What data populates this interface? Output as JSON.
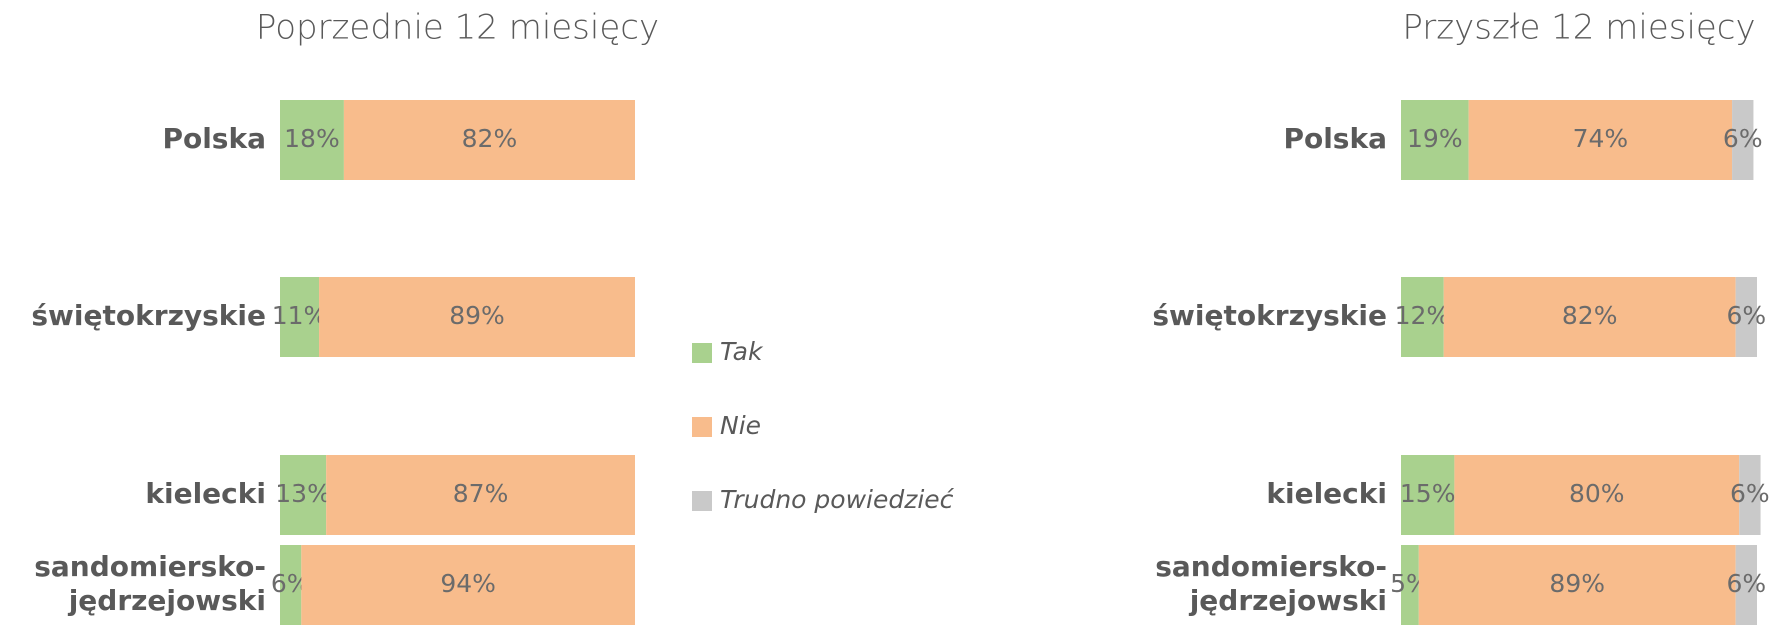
{
  "chart_data": [
    {
      "type": "stacked_barh",
      "title": "Poprzednie 12 miesięcy",
      "categories": [
        "Polska",
        "świętokrzyskie",
        "kielecki",
        "sandomiersko-\njędrzejowski"
      ],
      "xlim": [
        0,
        100
      ],
      "series": [
        {
          "name": "Tak",
          "color": "#a9d18e",
          "values": [
            18,
            11,
            13,
            6
          ],
          "value_labels": [
            "18%",
            "11%",
            "13%",
            "6%"
          ]
        },
        {
          "name": "Nie",
          "color": "#f8bc8c",
          "values": [
            82,
            89,
            87,
            94
          ],
          "value_labels": [
            "82%",
            "89%",
            "87%",
            "94%"
          ]
        }
      ]
    },
    {
      "type": "stacked_barh",
      "title": "Przyszłe 12 miesięcy",
      "categories": [
        "Polska",
        "świętokrzyskie",
        "kielecki",
        "sandomiersko-\njędrzejowski"
      ],
      "xlim": [
        0,
        100
      ],
      "series": [
        {
          "name": "Tak",
          "color": "#a9d18e",
          "values": [
            19,
            12,
            15,
            5
          ],
          "value_labels": [
            "19%",
            "12%",
            "15%",
            "5%"
          ]
        },
        {
          "name": "Nie",
          "color": "#f8bc8c",
          "values": [
            74,
            82,
            80,
            89
          ],
          "value_labels": [
            "74%",
            "82%",
            "80%",
            "89%"
          ]
        },
        {
          "name": "Trudno powiedzieć",
          "color": "#c9c9c9",
          "values": [
            6,
            6,
            6,
            6
          ],
          "value_labels": [
            "6%",
            "6%",
            "6%",
            "6%"
          ]
        }
      ]
    }
  ]
}
